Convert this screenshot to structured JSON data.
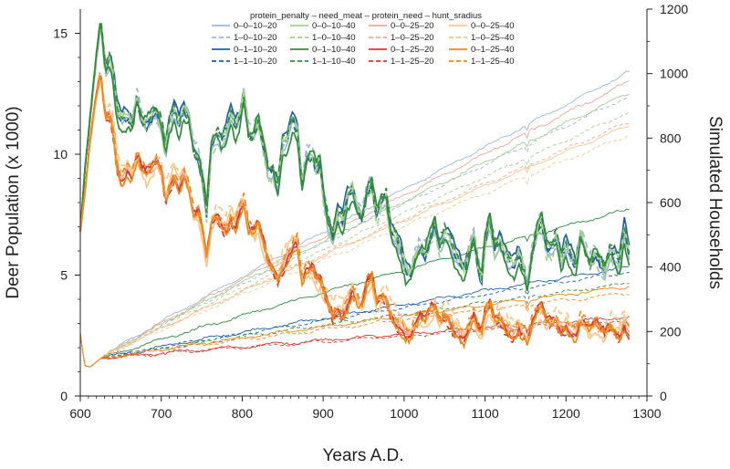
{
  "chart_data": {
    "type": "line",
    "xlabel": "Years A.D.",
    "ylabel": "Deer Population (x 1000)",
    "y2label": "Simulated Households",
    "xlim": [
      600,
      1300
    ],
    "ylim": [
      0,
      16
    ],
    "y2lim": [
      0,
      1200
    ],
    "x_ticks": [
      "600",
      "700",
      "800",
      "900",
      "1000",
      "1100",
      "1200",
      "1300"
    ],
    "y_ticks": [
      "0",
      "5",
      "10",
      "15"
    ],
    "y2_ticks": [
      "0",
      "200",
      "400",
      "600",
      "800",
      "1000",
      "1200"
    ],
    "grid": false,
    "legend_title": "protein_penalty – need_meat – protein_need – hunt_sradius",
    "legend_position": "top-center",
    "series": [
      {
        "name": "0–0–10–20",
        "color": "#9bb8d8",
        "dash": "solid",
        "deer_group": "a",
        "hh_end": 1005
      },
      {
        "name": "1–0–10–20",
        "color": "#9bb8d8",
        "dash": "dashed",
        "deer_group": "a",
        "hh_end": 930
      },
      {
        "name": "0–1–10–20",
        "color": "#1f5fa0",
        "dash": "solid",
        "deer_group": "a",
        "hh_end": 400
      },
      {
        "name": "1–1–10–20",
        "color": "#1f5fa0",
        "dash": "dashed",
        "deer_group": "a",
        "hh_end": 385
      },
      {
        "name": "0–0–10–40",
        "color": "#a6d08b",
        "dash": "solid",
        "deer_group": "a",
        "hh_end": 940
      },
      {
        "name": "1–0–10–40",
        "color": "#a6d08b",
        "dash": "dashed",
        "deer_group": "a",
        "hh_end": 880
      },
      {
        "name": "0–1–10–40",
        "color": "#2e8b3a",
        "dash": "solid",
        "deer_group": "a",
        "hh_end": 580
      },
      {
        "name": "1–1–10–40",
        "color": "#2e8b3a",
        "dash": "dashed",
        "deer_group": "a",
        "hh_end": 350
      },
      {
        "name": "0–0–25–20",
        "color": "#f0a898",
        "dash": "solid",
        "deer_group": "b",
        "hh_end": 975
      },
      {
        "name": "1–0–25–20",
        "color": "#f0a898",
        "dash": "dashed",
        "deer_group": "b",
        "hh_end": 850
      },
      {
        "name": "0–1–25–20",
        "color": "#d83a2c",
        "dash": "solid",
        "deer_group": "b",
        "hh_end": 245
      },
      {
        "name": "1–1–25–20",
        "color": "#d83a2c",
        "dash": "dashed",
        "deer_group": "b",
        "hh_end": 235
      },
      {
        "name": "0–0–25–40",
        "color": "#f8c88a",
        "dash": "solid",
        "deer_group": "b",
        "hh_end": 840
      },
      {
        "name": "1–0–25–40",
        "color": "#f8c88a",
        "dash": "dashed",
        "deer_group": "b",
        "hh_end": 810
      },
      {
        "name": "0–1–25–40",
        "color": "#f08a1c",
        "dash": "solid",
        "deer_group": "b",
        "hh_end": 340
      },
      {
        "name": "1–1–25–40",
        "color": "#f08a1c",
        "dash": "dashed",
        "deer_group": "b",
        "hh_end": 320
      }
    ],
    "deer_profiles": {
      "a": [
        [
          600,
          6.8
        ],
        [
          606,
          9.5
        ],
        [
          612,
          11.5
        ],
        [
          618,
          13.5
        ],
        [
          625,
          15.6
        ],
        [
          631,
          13.5
        ],
        [
          637,
          13.9
        ],
        [
          641,
          13.1
        ],
        [
          646,
          11.7
        ],
        [
          651,
          11.4
        ],
        [
          658,
          11.6
        ],
        [
          664,
          11.3
        ],
        [
          670,
          12.4
        ],
        [
          676,
          11.5
        ],
        [
          682,
          11.4
        ],
        [
          688,
          11.6
        ],
        [
          694,
          11.8
        ],
        [
          700,
          11.3
        ],
        [
          705,
          10.1
        ],
        [
          710,
          11.2
        ],
        [
          716,
          11.8
        ],
        [
          722,
          11.2
        ],
        [
          728,
          11.9
        ],
        [
          734,
          11.6
        ],
        [
          740,
          10.3
        ],
        [
          746,
          9.9
        ],
        [
          752,
          8.8
        ],
        [
          756,
          7.7
        ],
        [
          762,
          10.5
        ],
        [
          768,
          10.8
        ],
        [
          774,
          10.5
        ],
        [
          780,
          10.8
        ],
        [
          786,
          11.7
        ],
        [
          792,
          11.1
        ],
        [
          798,
          11.7
        ],
        [
          802,
          12.6
        ],
        [
          808,
          10.9
        ],
        [
          814,
          10.9
        ],
        [
          820,
          11.5
        ],
        [
          826,
          10.5
        ],
        [
          832,
          9.4
        ],
        [
          838,
          9.3
        ],
        [
          844,
          8.6
        ],
        [
          850,
          10.4
        ],
        [
          856,
          10.6
        ],
        [
          862,
          11.5
        ],
        [
          868,
          11.0
        ],
        [
          874,
          8.8
        ],
        [
          880,
          10.0
        ],
        [
          886,
          10.1
        ],
        [
          892,
          9.5
        ],
        [
          896,
          9.8
        ],
        [
          900,
          8.5
        ],
        [
          906,
          7.2
        ],
        [
          912,
          6.6
        ],
        [
          918,
          7.5
        ],
        [
          924,
          7.2
        ],
        [
          930,
          8.2
        ],
        [
          936,
          8.6
        ],
        [
          942,
          7.8
        ],
        [
          948,
          7.5
        ],
        [
          954,
          8.5
        ],
        [
          960,
          8.9
        ],
        [
          966,
          7.6
        ],
        [
          972,
          8.1
        ],
        [
          978,
          8.2
        ],
        [
          984,
          6.8
        ],
        [
          990,
          6.5
        ],
        [
          996,
          6.0
        ],
        [
          1002,
          5.2
        ],
        [
          1008,
          5.1
        ],
        [
          1014,
          5.9
        ],
        [
          1020,
          6.2
        ],
        [
          1026,
          6.0
        ],
        [
          1032,
          6.6
        ],
        [
          1038,
          7.2
        ],
        [
          1044,
          6.2
        ],
        [
          1050,
          6.7
        ],
        [
          1056,
          6.5
        ],
        [
          1062,
          5.9
        ],
        [
          1068,
          5.5
        ],
        [
          1074,
          5.2
        ],
        [
          1080,
          6.0
        ],
        [
          1086,
          6.7
        ],
        [
          1092,
          5.3
        ],
        [
          1096,
          5.0
        ],
        [
          1100,
          6.5
        ],
        [
          1106,
          7.4
        ],
        [
          1112,
          6.1
        ],
        [
          1118,
          6.5
        ],
        [
          1124,
          5.9
        ],
        [
          1130,
          5.5
        ],
        [
          1136,
          5.4
        ],
        [
          1142,
          5.9
        ],
        [
          1148,
          5.3
        ],
        [
          1152,
          4.5
        ],
        [
          1158,
          6.0
        ],
        [
          1164,
          6.9
        ],
        [
          1170,
          7.4
        ],
        [
          1176,
          6.2
        ],
        [
          1182,
          6.1
        ],
        [
          1188,
          6.5
        ],
        [
          1194,
          5.6
        ],
        [
          1200,
          6.2
        ],
        [
          1206,
          5.8
        ],
        [
          1212,
          5.4
        ],
        [
          1218,
          6.8
        ],
        [
          1224,
          6.1
        ],
        [
          1230,
          5.6
        ],
        [
          1236,
          6.0
        ],
        [
          1242,
          5.6
        ],
        [
          1248,
          5.2
        ],
        [
          1254,
          6.0
        ],
        [
          1260,
          5.8
        ],
        [
          1266,
          5.4
        ],
        [
          1272,
          6.9
        ],
        [
          1278,
          5.8
        ]
      ],
      "b": [
        [
          600,
          6.8
        ],
        [
          606,
          8.5
        ],
        [
          612,
          10.5
        ],
        [
          618,
          12.0
        ],
        [
          625,
          13.3
        ],
        [
          631,
          11.5
        ],
        [
          637,
          11.7
        ],
        [
          641,
          11.0
        ],
        [
          646,
          9.6
        ],
        [
          651,
          9.1
        ],
        [
          658,
          9.6
        ],
        [
          664,
          9.2
        ],
        [
          670,
          10.0
        ],
        [
          676,
          9.4
        ],
        [
          682,
          9.1
        ],
        [
          688,
          9.3
        ],
        [
          694,
          9.6
        ],
        [
          700,
          9.3
        ],
        [
          705,
          8.2
        ],
        [
          710,
          8.8
        ],
        [
          716,
          9.3
        ],
        [
          722,
          8.9
        ],
        [
          728,
          9.4
        ],
        [
          734,
          8.8
        ],
        [
          740,
          7.6
        ],
        [
          746,
          7.6
        ],
        [
          752,
          6.5
        ],
        [
          756,
          5.6
        ],
        [
          762,
          7.0
        ],
        [
          768,
          7.4
        ],
        [
          774,
          7.2
        ],
        [
          780,
          7.0
        ],
        [
          786,
          7.5
        ],
        [
          792,
          7.3
        ],
        [
          798,
          8.0
        ],
        [
          802,
          8.2
        ],
        [
          808,
          7.0
        ],
        [
          814,
          6.8
        ],
        [
          820,
          7.0
        ],
        [
          826,
          6.2
        ],
        [
          832,
          5.5
        ],
        [
          838,
          5.2
        ],
        [
          844,
          4.9
        ],
        [
          850,
          5.5
        ],
        [
          856,
          6.0
        ],
        [
          862,
          6.4
        ],
        [
          868,
          6.6
        ],
        [
          874,
          4.9
        ],
        [
          880,
          5.2
        ],
        [
          886,
          5.2
        ],
        [
          892,
          4.7
        ],
        [
          896,
          4.7
        ],
        [
          900,
          4.3
        ],
        [
          906,
          3.8
        ],
        [
          912,
          3.4
        ],
        [
          918,
          3.7
        ],
        [
          924,
          3.6
        ],
        [
          930,
          4.0
        ],
        [
          936,
          4.6
        ],
        [
          942,
          4.1
        ],
        [
          948,
          3.8
        ],
        [
          954,
          4.6
        ],
        [
          960,
          4.8
        ],
        [
          966,
          3.8
        ],
        [
          972,
          4.0
        ],
        [
          978,
          4.0
        ],
        [
          984,
          3.4
        ],
        [
          990,
          3.2
        ],
        [
          996,
          3.0
        ],
        [
          1002,
          2.8
        ],
        [
          1008,
          2.7
        ],
        [
          1014,
          3.1
        ],
        [
          1020,
          3.3
        ],
        [
          1026,
          3.1
        ],
        [
          1032,
          3.4
        ],
        [
          1038,
          3.6
        ],
        [
          1044,
          3.1
        ],
        [
          1050,
          3.4
        ],
        [
          1056,
          3.3
        ],
        [
          1062,
          2.9
        ],
        [
          1068,
          2.8
        ],
        [
          1074,
          2.6
        ],
        [
          1080,
          3.0
        ],
        [
          1086,
          3.4
        ],
        [
          1092,
          2.7
        ],
        [
          1096,
          2.6
        ],
        [
          1100,
          3.3
        ],
        [
          1106,
          3.7
        ],
        [
          1112,
          3.1
        ],
        [
          1118,
          3.3
        ],
        [
          1124,
          3.0
        ],
        [
          1130,
          2.8
        ],
        [
          1136,
          2.8
        ],
        [
          1142,
          3.0
        ],
        [
          1148,
          2.7
        ],
        [
          1152,
          2.4
        ],
        [
          1158,
          3.0
        ],
        [
          1164,
          3.4
        ],
        [
          1170,
          3.5
        ],
        [
          1176,
          3.0
        ],
        [
          1182,
          3.0
        ],
        [
          1188,
          3.2
        ],
        [
          1194,
          2.8
        ],
        [
          1200,
          3.1
        ],
        [
          1206,
          2.9
        ],
        [
          1212,
          2.7
        ],
        [
          1218,
          3.3
        ],
        [
          1224,
          3.0
        ],
        [
          1230,
          2.7
        ],
        [
          1236,
          2.9
        ],
        [
          1242,
          2.7
        ],
        [
          1248,
          2.5
        ],
        [
          1254,
          2.9
        ],
        [
          1260,
          2.8
        ],
        [
          1266,
          2.6
        ],
        [
          1272,
          3.2
        ],
        [
          1278,
          2.8
        ]
      ]
    },
    "households_start": [
      [
        600,
        2.6
      ],
      [
        603,
        1.8
      ],
      [
        606,
        1.25
      ],
      [
        612,
        1.2
      ],
      [
        618,
        1.35
      ],
      [
        625,
        1.55
      ]
    ]
  }
}
